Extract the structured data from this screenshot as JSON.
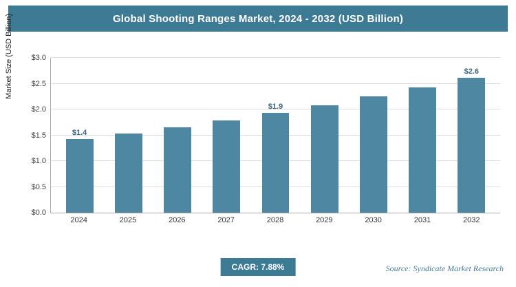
{
  "header": {
    "title": "Global Shooting Ranges Market, 2024 - 2032 (USD Billion)"
  },
  "chart_data": {
    "type": "bar",
    "title": "Global Shooting Ranges Market, 2024 - 2032 (USD Billion)",
    "categories": [
      "2024",
      "2025",
      "2026",
      "2027",
      "2028",
      "2029",
      "2030",
      "2031",
      "2032"
    ],
    "values": [
      1.43,
      1.53,
      1.65,
      1.79,
      1.93,
      2.08,
      2.25,
      2.43,
      2.62
    ],
    "value_labels": [
      "$1.4",
      "",
      "",
      "",
      "$1.9",
      "",
      "",
      "",
      "$2.6"
    ],
    "xlabel": "",
    "ylabel": "Market Size (USD Billion)",
    "ylim": [
      0,
      3.0
    ],
    "yticks": [
      0,
      0.5,
      1.0,
      1.5,
      2.0,
      2.5,
      3.0
    ],
    "ytick_labels": [
      "$0.0",
      "$0.5",
      "$1.0",
      "$1.5",
      "$2.0",
      "$2.5",
      "$3.0"
    ],
    "grid": true,
    "legend": "none"
  },
  "footer": {
    "cagr_label": "CAGR: 7.88%",
    "source": "Source: Syndicate Market Research"
  },
  "colors": {
    "accent": "#3d7a93",
    "bar": "#4d87a1",
    "gridline": "#dcdcdc"
  }
}
